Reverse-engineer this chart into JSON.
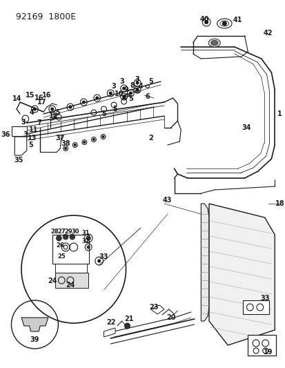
{
  "title": "92169  1800E",
  "bg_color": "#ffffff",
  "lc": "#1a1a1a",
  "figsize": [
    4.14,
    5.33
  ],
  "dpi": 100
}
